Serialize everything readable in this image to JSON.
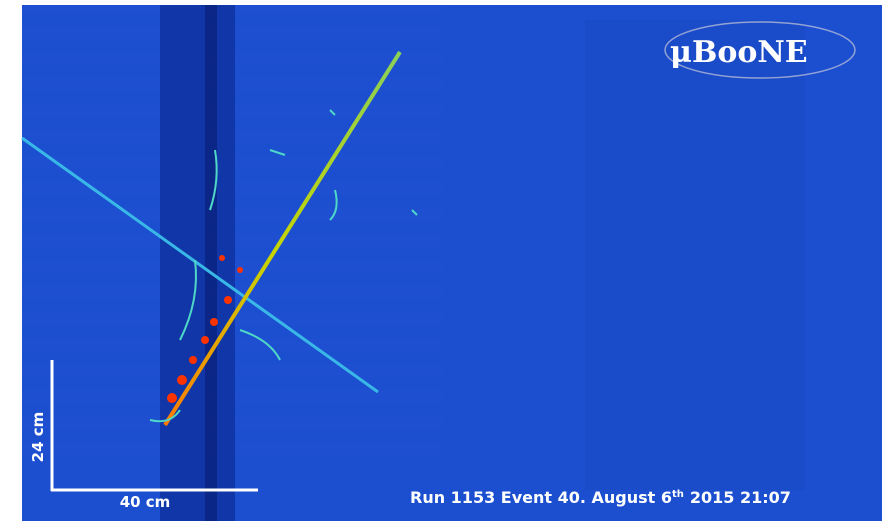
{
  "logo": "μBooNE",
  "scale_bar": {
    "vertical_label": "24 cm",
    "horizontal_label": "40 cm"
  },
  "caption": {
    "text_before": "Run 1153 Event 40. August 6",
    "superscript": "th",
    "text_after": "2015 21:07"
  }
}
